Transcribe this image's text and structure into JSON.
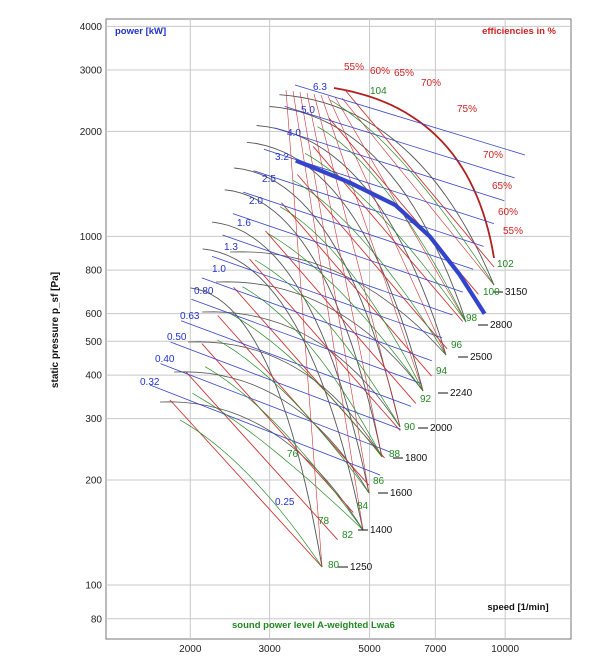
{
  "chart_data": {
    "type": "line",
    "title": "",
    "xlabel": "speed [1/min]",
    "ylabel": "static pressure p_sf [Pa]",
    "x_scale": "log",
    "y_scale": "log",
    "xlim": [
      1300,
      14000
    ],
    "ylim": [
      70,
      4200
    ],
    "x_ticks": [
      2000,
      3000,
      5000,
      7000,
      10000
    ],
    "x_tick_labels": [
      "2000",
      "3000",
      "5000",
      "7000",
      "10000"
    ],
    "y_ticks": [
      80,
      100,
      200,
      300,
      400,
      500,
      600,
      800,
      1000,
      2000,
      3000,
      4000
    ],
    "y_tick_labels": [
      "80",
      "100",
      "200",
      "300",
      "400",
      "500",
      "600",
      "800",
      "1000",
      "2000",
      "3000",
      "4000"
    ],
    "headers": {
      "power": "power [kW]",
      "efficiency": "efficiencies in %",
      "sound": "sound power level A-weighted Lwa6"
    },
    "speed_labels": [
      "1250",
      "1400",
      "1600",
      "1800",
      "2000",
      "2240",
      "2500",
      "2800",
      "3150"
    ],
    "sound_labels": [
      "80",
      "82",
      "84",
      "86",
      "88",
      "90",
      "92",
      "94",
      "96",
      "98",
      "100",
      "102",
      "104",
      "76",
      "78"
    ],
    "power_labels": [
      "0.25",
      "0.32",
      "0.40",
      "0.50",
      "0.63",
      "0.80",
      "1.0",
      "1.3",
      "1.6",
      "2.0",
      "2.5",
      "3.2",
      "4.0",
      "5.0",
      "6.3"
    ],
    "efficiency_labels_top": [
      "55%",
      "60%",
      "65%",
      "70%",
      "75%"
    ],
    "efficiency_labels_right": [
      "70%",
      "65%",
      "60%",
      "55%"
    ],
    "highlight_series": {
      "name": "",
      "points": [
        [
          3430,
          1650
        ],
        [
          4500,
          1430
        ],
        [
          5700,
          1230
        ],
        [
          6800,
          1000
        ],
        [
          7900,
          780
        ],
        [
          9000,
          600
        ]
      ]
    },
    "colors": {
      "power": "#2233cc",
      "efficiency": "#cc2222",
      "sound": "#228822",
      "speed": "#333333",
      "highlight": "#3344cc"
    }
  }
}
